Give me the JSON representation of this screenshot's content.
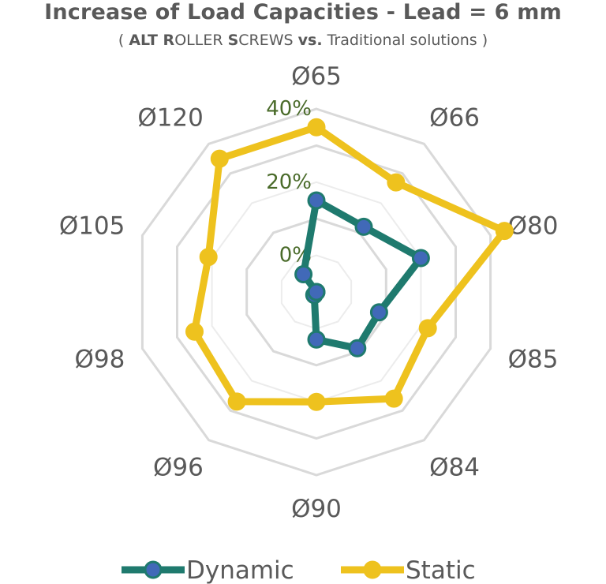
{
  "chart_data": {
    "type": "radar",
    "title": "Increase of Load Capacities - Lead = 6 mm",
    "subtitle": {
      "open": "( ",
      "p1_bold": "ALT R",
      "p2": "OLLER ",
      "p3_bold": "S",
      "p4": "CREWS ",
      "p5_bold": "vs.",
      "p6": " Traditional solutions )"
    },
    "categories": [
      "Ø65",
      "Ø66",
      "Ø80",
      "Ø85",
      "Ø84",
      "Ø90",
      "Ø96",
      "Ø98",
      "Ø105",
      "Ø120"
    ],
    "series": [
      {
        "name": "Dynamic",
        "color": "#1f7a6e",
        "marker_color": "#4169b8",
        "values": [
          15,
          12,
          20,
          8,
          9,
          3,
          -9,
          -10,
          -10,
          -4
        ]
      },
      {
        "name": "Static",
        "color": "#eec21e",
        "marker_color": "#eec21e",
        "values": [
          35,
          27,
          44,
          22,
          26,
          20,
          27,
          25,
          21,
          35
        ]
      }
    ],
    "axis": {
      "min": -10,
      "max": 40,
      "ticks": [
        0,
        20,
        40
      ],
      "tick_labels": [
        "0%",
        "20%",
        "40%"
      ]
    },
    "grid": true,
    "legend_position": "bottom",
    "colors": {
      "grid": "#d9d9d9",
      "grid_inner": "#ececec",
      "tick": "#4a6b2a",
      "text": "#595959"
    }
  }
}
